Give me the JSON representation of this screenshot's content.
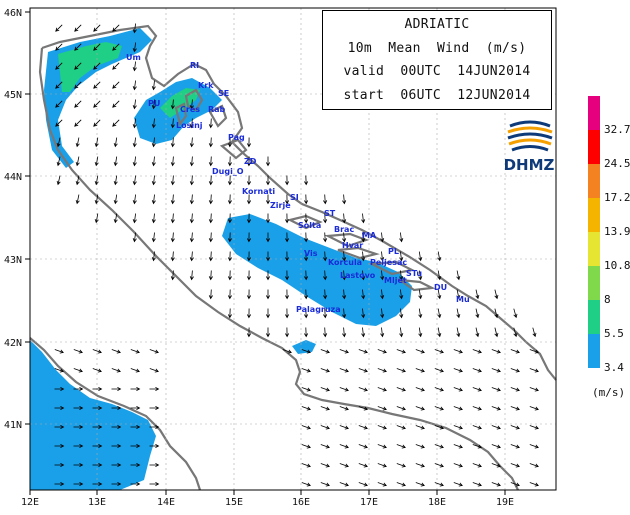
{
  "info": {
    "title": "ADRIATIC",
    "variable": "10m  Mean  Wind  (m/s)",
    "valid": "valid  00UTC  14JUN2014",
    "start": "start  06UTC  12JUN2014"
  },
  "logo": {
    "text": "DHMZ",
    "icon": "dhmz-globe-icon"
  },
  "legend": {
    "unit": "(m/s)",
    "levels": [
      {
        "label": "32.7",
        "color": "#e6007e"
      },
      {
        "label": "24.5",
        "color": "#ff0000"
      },
      {
        "label": "17.2",
        "color": "#f58220"
      },
      {
        "label": "13.9",
        "color": "#f5b400"
      },
      {
        "label": "10.8",
        "color": "#e6e632"
      },
      {
        "label": "8",
        "color": "#7fd94a"
      },
      {
        "label": "5.5",
        "color": "#1fcf85"
      },
      {
        "label": "3.4",
        "color": "#1aa0e8"
      }
    ]
  },
  "axes": {
    "lon_ticks": [
      "12E",
      "13E",
      "14E",
      "15E",
      "16E",
      "17E",
      "18E",
      "19E"
    ],
    "lat_ticks": [
      "46N",
      "45N",
      "44N",
      "43N",
      "42N",
      "41N"
    ]
  },
  "colors": {
    "land": "#ffffff",
    "sea": "#ffffff",
    "coast": "#777777",
    "wind_light": "#1aa0e8",
    "wind_moderate": "#1fcf85",
    "arrow": "#000000",
    "place_label": "#1a2bd8"
  },
  "places": [
    {
      "name": "Um"
    },
    {
      "name": "RI"
    },
    {
      "name": "Krk"
    },
    {
      "name": "SE"
    },
    {
      "name": "PU"
    },
    {
      "name": "Cres"
    },
    {
      "name": "Rab"
    },
    {
      "name": "Losinj"
    },
    {
      "name": "Pag"
    },
    {
      "name": "ZD"
    },
    {
      "name": "Dugi_O"
    },
    {
      "name": "Kornati"
    },
    {
      "name": "SI"
    },
    {
      "name": "Zirje"
    },
    {
      "name": "ST"
    },
    {
      "name": "Solta"
    },
    {
      "name": "Brac"
    },
    {
      "name": "MA"
    },
    {
      "name": "Hvar"
    },
    {
      "name": "PL"
    },
    {
      "name": "Vis"
    },
    {
      "name": "Korcula"
    },
    {
      "name": "Peljesac"
    },
    {
      "name": "Lastovo"
    },
    {
      "name": "STu"
    },
    {
      "name": "Mljet"
    },
    {
      "name": "DU"
    },
    {
      "name": "Mu"
    },
    {
      "name": "Palagruza"
    }
  ]
}
